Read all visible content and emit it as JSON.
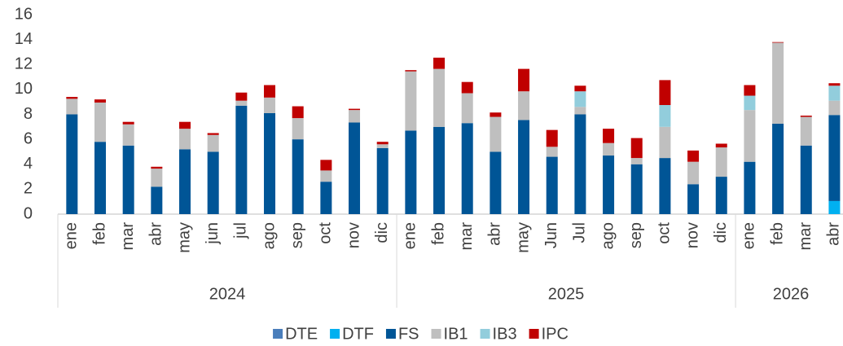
{
  "chart_data": {
    "type": "stacked_bar",
    "groups": [
      {
        "name": "2024",
        "categories": [
          "ene",
          "feb",
          "mar",
          "abr",
          "may",
          "jun",
          "jul",
          "ago",
          "sep",
          "oct",
          "nov",
          "dic"
        ]
      },
      {
        "name": "2025",
        "categories": [
          "ene",
          "feb",
          "mar",
          "abr",
          "may",
          "Jun",
          "Jul",
          "ago",
          "sep",
          "oct",
          "nov",
          "dic"
        ]
      },
      {
        "name": "2026",
        "categories": [
          "ene",
          "feb",
          "mar",
          "abr"
        ]
      }
    ],
    "series": [
      {
        "name": "DTE",
        "color": "#4a7ebb",
        "values": [
          0,
          0,
          0,
          0,
          0,
          0,
          0,
          0,
          0,
          0,
          0,
          0,
          0,
          0,
          0,
          0,
          0,
          0,
          0,
          0,
          0,
          0,
          0,
          0,
          0,
          0,
          0,
          0
        ]
      },
      {
        "name": "DTF",
        "color": "#00b0f0",
        "values": [
          0,
          0,
          0,
          0,
          0,
          0,
          0,
          0,
          0,
          0,
          0,
          0,
          0,
          0,
          0,
          0,
          0,
          0,
          0,
          0,
          0,
          0,
          0,
          0,
          0,
          0,
          0,
          1.05
        ]
      },
      {
        "name": "FS",
        "color": "#005596",
        "values": [
          8.0,
          5.8,
          5.5,
          2.2,
          5.2,
          5.0,
          8.7,
          8.1,
          6.0,
          2.6,
          7.35,
          5.3,
          6.7,
          7.0,
          7.3,
          5.0,
          7.55,
          4.6,
          8.0,
          4.7,
          4.0,
          4.5,
          2.4,
          3.0,
          4.2,
          7.25,
          5.5,
          6.9
        ]
      },
      {
        "name": "IB1",
        "color": "#bfbfbf",
        "values": [
          1.25,
          3.15,
          1.7,
          1.45,
          1.65,
          1.35,
          0.4,
          1.25,
          1.7,
          0.9,
          1.0,
          0.3,
          4.75,
          4.65,
          2.4,
          2.8,
          2.3,
          0.8,
          0.6,
          1.0,
          0.5,
          2.5,
          1.8,
          2.35,
          4.15,
          6.5,
          2.3,
          1.15
        ]
      },
      {
        "name": "IB3",
        "color": "#92cddc",
        "values": [
          0,
          0,
          0,
          0,
          0,
          0,
          0,
          0,
          0,
          0,
          0,
          0,
          0,
          0,
          0,
          0,
          0,
          0,
          1.25,
          0,
          0,
          1.75,
          0,
          0,
          1.15,
          0,
          0,
          1.2
        ]
      },
      {
        "name": "IPC",
        "color": "#c00000",
        "values": [
          0.15,
          0.25,
          0.2,
          0.15,
          0.55,
          0.15,
          0.65,
          1.0,
          0.95,
          0.85,
          0.1,
          0.2,
          0.1,
          0.9,
          0.9,
          0.35,
          1.8,
          1.35,
          0.45,
          1.15,
          1.6,
          2.0,
          0.9,
          0.3,
          0.85,
          0.05,
          0.1,
          0.2
        ]
      }
    ],
    "ylim": [
      0,
      16
    ],
    "yticks": [
      0,
      2,
      4,
      6,
      8,
      10,
      12,
      14,
      16
    ],
    "grid": false,
    "legend": "bottom"
  }
}
